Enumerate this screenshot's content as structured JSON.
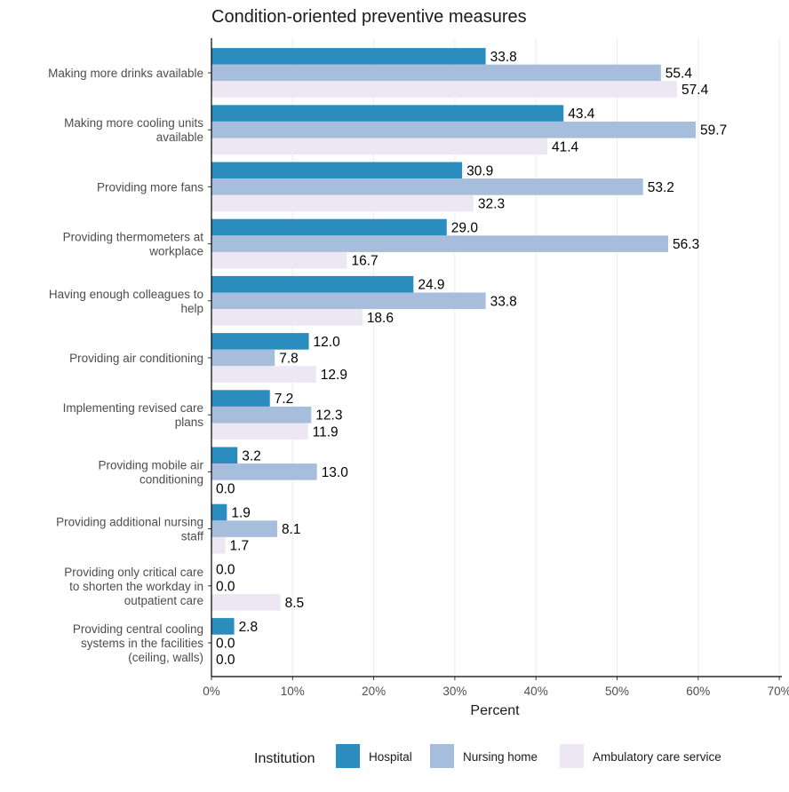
{
  "chart_data": {
    "type": "bar",
    "orientation": "horizontal",
    "title": "Condition-oriented preventive measures",
    "xlabel": "Percent",
    "ylabel": "",
    "xlim": [
      0,
      70
    ],
    "x_ticks": [
      "0%",
      "10%",
      "20%",
      "30%",
      "40%",
      "50%",
      "60%",
      "70%"
    ],
    "grid": "vertical",
    "legend": {
      "title": "Institution",
      "position": "bottom"
    },
    "categories": [
      [
        "Making more drinks available"
      ],
      [
        "Making more cooling units",
        "available"
      ],
      [
        "Providing more fans"
      ],
      [
        "Providing thermometers at",
        "workplace"
      ],
      [
        "Having enough colleagues to",
        "help"
      ],
      [
        "Providing air conditioning"
      ],
      [
        "Implementing revised care",
        "plans"
      ],
      [
        "Providing mobile air",
        "conditioning"
      ],
      [
        "Providing additional nursing",
        "staff"
      ],
      [
        "Providing only critical care",
        "to shorten the workday in",
        "outpatient care"
      ],
      [
        "Providing central cooling",
        "systems in the facilities",
        "(ceiling, walls)"
      ]
    ],
    "series": [
      {
        "name": "Hospital",
        "color": "#2b8cbe",
        "values": [
          33.8,
          43.4,
          30.9,
          29.0,
          24.9,
          12.0,
          7.2,
          3.2,
          1.9,
          0.0,
          2.8
        ]
      },
      {
        "name": "Nursing home",
        "color": "#a6bddb",
        "values": [
          55.4,
          59.7,
          53.2,
          56.3,
          33.8,
          7.8,
          12.3,
          13.0,
          8.1,
          0.0,
          0.0
        ]
      },
      {
        "name": "Ambulatory care service",
        "color": "#ece7f2",
        "values": [
          57.4,
          41.4,
          32.3,
          16.7,
          18.6,
          12.9,
          11.9,
          0.0,
          1.7,
          8.5,
          0.0
        ]
      }
    ]
  }
}
